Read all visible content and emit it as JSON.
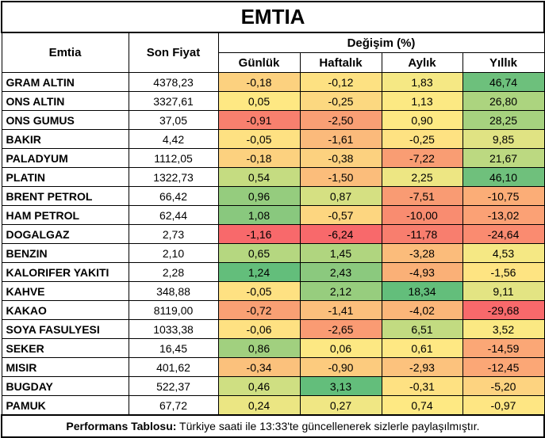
{
  "title": "EMTIA",
  "headers": {
    "emtia": "Emtia",
    "son_fiyat": "Son Fiyat",
    "degisim": "Değişim (%)",
    "gunluk": "Günlük",
    "haftalik": "Haftalık",
    "aylik": "Aylık",
    "yillik": "Yıllık"
  },
  "rows": [
    {
      "name": "GRAM ALTIN",
      "price": "4378,23",
      "cells": [
        {
          "v": "-0,18",
          "c": "#fcd17f"
        },
        {
          "v": "-0,12",
          "c": "#fde182"
        },
        {
          "v": "1,83",
          "c": "#f5e884"
        },
        {
          "v": "46,74",
          "c": "#6dc07c"
        }
      ]
    },
    {
      "name": "ONS ALTIN",
      "price": "3327,61",
      "cells": [
        {
          "v": "0,05",
          "c": "#fee883"
        },
        {
          "v": "-0,25",
          "c": "#fcd880"
        },
        {
          "v": "1,13",
          "c": "#fce983"
        },
        {
          "v": "26,80",
          "c": "#acd47f"
        }
      ]
    },
    {
      "name": "ONS GUMUS",
      "price": "37,05",
      "cells": [
        {
          "v": "-0,91",
          "c": "#f8806e"
        },
        {
          "v": "-2,50",
          "c": "#f99f74"
        },
        {
          "v": "0,90",
          "c": "#fee983"
        },
        {
          "v": "28,25",
          "c": "#a6d27f"
        }
      ]
    },
    {
      "name": "BAKIR",
      "price": "4,42",
      "cells": [
        {
          "v": "-0,05",
          "c": "#fee182"
        },
        {
          "v": "-1,61",
          "c": "#fbba7b"
        },
        {
          "v": "-0,25",
          "c": "#fee282"
        },
        {
          "v": "9,85",
          "c": "#e0e383"
        }
      ]
    },
    {
      "name": "PALADYUM",
      "price": "1112,05",
      "cells": [
        {
          "v": "-0,18",
          "c": "#fcd17f"
        },
        {
          "v": "-0,38",
          "c": "#fcd17f"
        },
        {
          "v": "-7,22",
          "c": "#f99d73"
        },
        {
          "v": "21,67",
          "c": "#bcd981"
        }
      ]
    },
    {
      "name": "PLATIN",
      "price": "1322,73",
      "cells": [
        {
          "v": "0,54",
          "c": "#c5dc81"
        },
        {
          "v": "-1,50",
          "c": "#fbbd7b"
        },
        {
          "v": "2,25",
          "c": "#ede683"
        },
        {
          "v": "46,10",
          "c": "#6fc07c"
        }
      ]
    },
    {
      "name": "BRENT PETROL",
      "price": "66,42",
      "cells": [
        {
          "v": "0,96",
          "c": "#95cc7e"
        },
        {
          "v": "0,87",
          "c": "#d5e082"
        },
        {
          "v": "-7,51",
          "c": "#f99b73"
        },
        {
          "v": "-10,75",
          "c": "#fbad77"
        }
      ]
    },
    {
      "name": "HAM PETROL",
      "price": "62,44",
      "cells": [
        {
          "v": "1,08",
          "c": "#89c87e"
        },
        {
          "v": "-0,57",
          "c": "#fdd680"
        },
        {
          "v": "-10,00",
          "c": "#f98c70"
        },
        {
          "v": "-13,02",
          "c": "#fba175"
        }
      ]
    },
    {
      "name": "DOGALGAZ",
      "price": "2,73",
      "cells": [
        {
          "v": "-1,16",
          "c": "#f8696b"
        },
        {
          "v": "-6,24",
          "c": "#f8696b"
        },
        {
          "v": "-11,78",
          "c": "#f87e6e"
        },
        {
          "v": "-24,64",
          "c": "#fa8b70"
        }
      ]
    },
    {
      "name": "BENZIN",
      "price": "2,10",
      "cells": [
        {
          "v": "0,65",
          "c": "#b5d780"
        },
        {
          "v": "1,45",
          "c": "#b0d57f"
        },
        {
          "v": "-3,28",
          "c": "#fbbc7b"
        },
        {
          "v": "4,53",
          "c": "#f5e884"
        }
      ]
    },
    {
      "name": "KALORIFER YAKITI",
      "price": "2,28",
      "cells": [
        {
          "v": "1,24",
          "c": "#63be7b"
        },
        {
          "v": "2,43",
          "c": "#8bc97e"
        },
        {
          "v": "-4,93",
          "c": "#fab077"
        },
        {
          "v": "-1,56",
          "c": "#fee482"
        }
      ]
    },
    {
      "name": "KAHVE",
      "price": "348,88",
      "cells": [
        {
          "v": "-0,05",
          "c": "#fee182"
        },
        {
          "v": "2,12",
          "c": "#97cd7e"
        },
        {
          "v": "18,34",
          "c": "#63be7b"
        },
        {
          "v": "9,11",
          "c": "#e3e483"
        }
      ]
    },
    {
      "name": "KAKAO",
      "price": "8119,00",
      "cells": [
        {
          "v": "-0,72",
          "c": "#f9a074"
        },
        {
          "v": "-1,41",
          "c": "#fbbf7c"
        },
        {
          "v": "-4,02",
          "c": "#fbb679"
        },
        {
          "v": "-29,68",
          "c": "#f8696b"
        }
      ]
    },
    {
      "name": "SOYA FASULYESI",
      "price": "1033,38",
      "cells": [
        {
          "v": "-0,06",
          "c": "#fee182"
        },
        {
          "v": "-2,65",
          "c": "#fa9b73"
        },
        {
          "v": "6,51",
          "c": "#c2db81"
        },
        {
          "v": "3,52",
          "c": "#fbe983"
        }
      ]
    },
    {
      "name": "SEKER",
      "price": "16,45",
      "cells": [
        {
          "v": "0,86",
          "c": "#a1d07f"
        },
        {
          "v": "0,06",
          "c": "#fde883"
        },
        {
          "v": "0,61",
          "c": "#fee883"
        },
        {
          "v": "-14,59",
          "c": "#fba776"
        }
      ]
    },
    {
      "name": "MISIR",
      "price": "401,62",
      "cells": [
        {
          "v": "-0,34",
          "c": "#fbc17c"
        },
        {
          "v": "-0,90",
          "c": "#fccb7e"
        },
        {
          "v": "-2,93",
          "c": "#fcc27d"
        },
        {
          "v": "-12,45",
          "c": "#fba776"
        }
      ]
    },
    {
      "name": "BUGDAY",
      "price": "522,37",
      "cells": [
        {
          "v": "0,46",
          "c": "#cfdf82"
        },
        {
          "v": "3,13",
          "c": "#63be7b"
        },
        {
          "v": "-0,31",
          "c": "#fee182"
        },
        {
          "v": "-5,20",
          "c": "#fdd380"
        }
      ]
    },
    {
      "name": "PAMUK",
      "price": "67,72",
      "cells": [
        {
          "v": "0,24",
          "c": "#ebe683"
        },
        {
          "v": "0,27",
          "c": "#f0e784"
        },
        {
          "v": "0,74",
          "c": "#fee983"
        },
        {
          "v": "-0,97",
          "c": "#fee683"
        }
      ]
    }
  ],
  "footer": {
    "label": "Performans Tablosu:",
    "text": " Türkiye saati ile 13:33'te güncellenerek sizlerle paylaşılmıştır."
  }
}
